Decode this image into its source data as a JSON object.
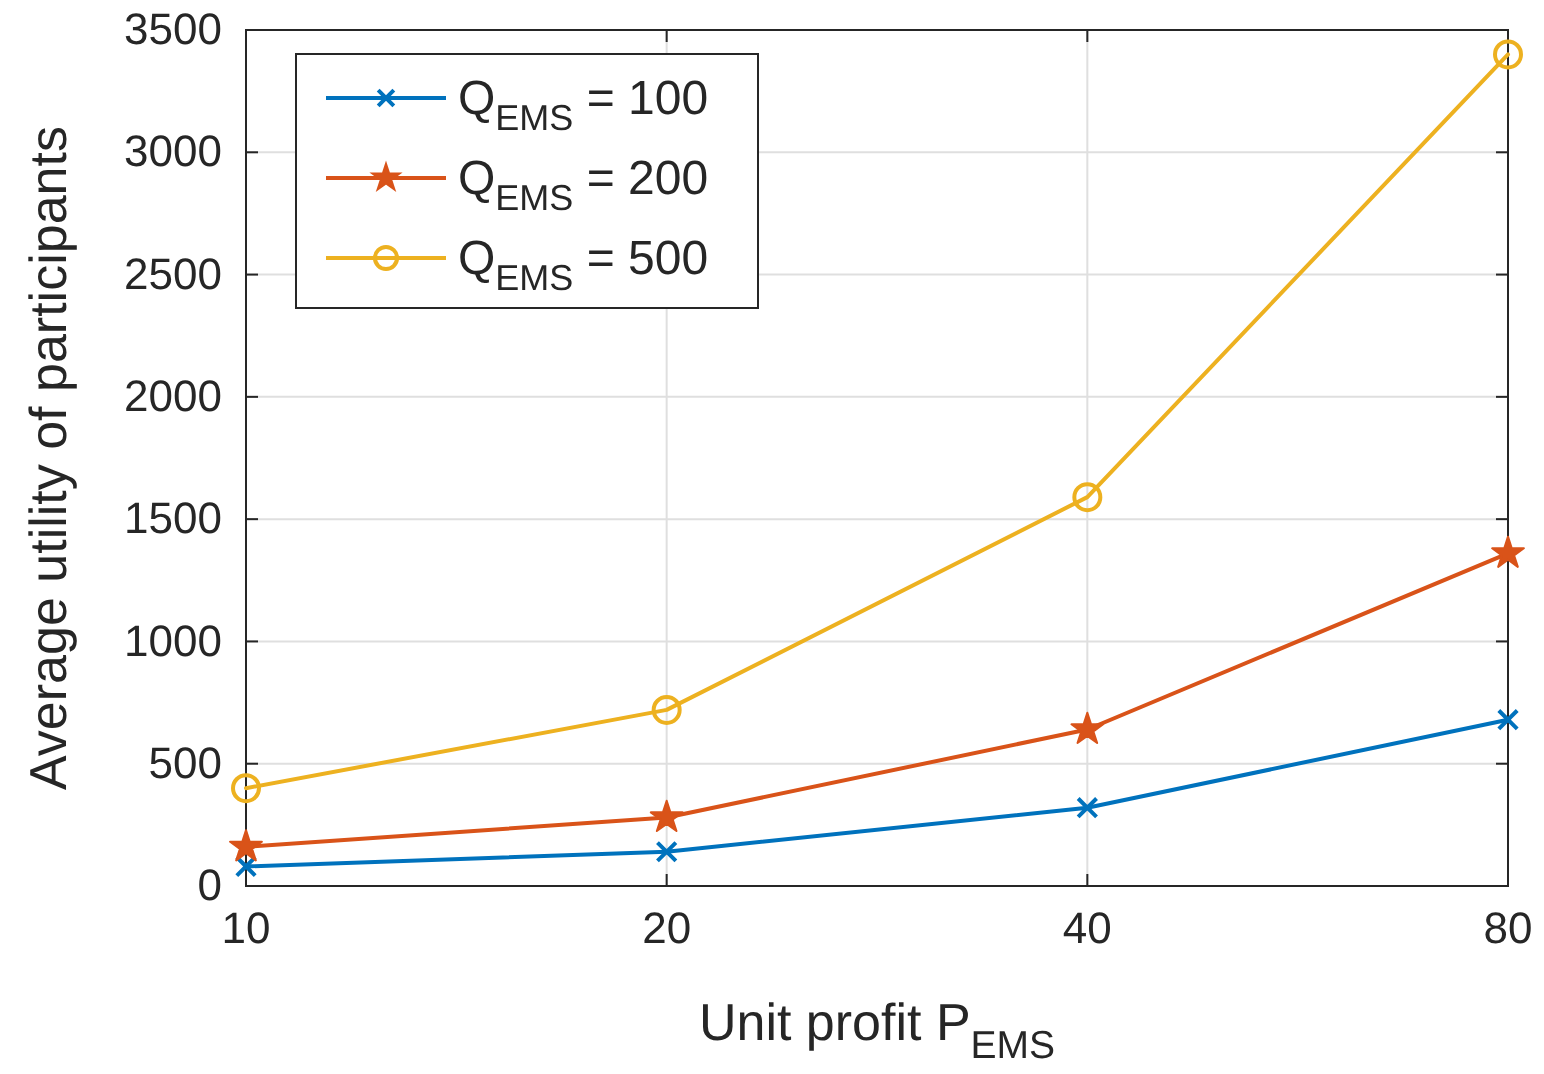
{
  "chart_data": {
    "type": "line",
    "xlabel": "Unit profit P$_{EMS}$",
    "ylabel": "Average utility of participants",
    "x": [
      10,
      20,
      40,
      80
    ],
    "log": "x",
    "xlim": [
      10,
      80
    ],
    "xticks": [
      10,
      20,
      40,
      80
    ],
    "ylim": [
      0,
      3500
    ],
    "yticks": [
      0,
      500,
      1000,
      1500,
      2000,
      2500,
      3000,
      3500
    ],
    "grid": true,
    "legend": "top left",
    "line_style": "solid",
    "series": [
      {
        "name": "Q$_{EMS}$ = 100",
        "color": "#0072bd",
        "marker": "cross",
        "values": [
          80,
          140,
          320,
          680
        ]
      },
      {
        "name": "Q$_{EMS}$ = 200",
        "color": "#d95319",
        "marker": "star",
        "values": [
          160,
          280,
          640,
          1360
        ]
      },
      {
        "name": "Q$_{EMS}$ = 500",
        "color": "#edb120",
        "marker": "circle",
        "values": [
          400,
          720,
          1590,
          3400
        ]
      }
    ]
  }
}
